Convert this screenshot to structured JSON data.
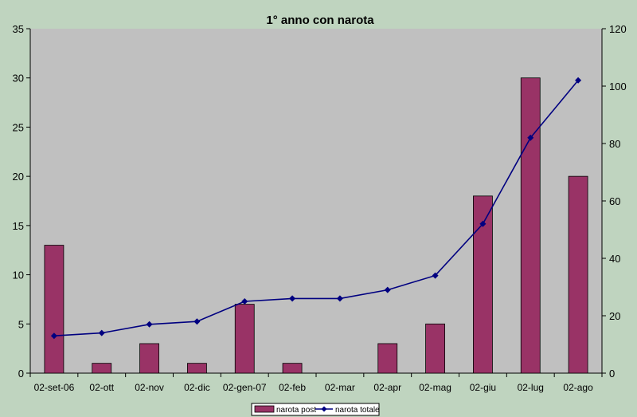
{
  "chart_data": {
    "type": "bar",
    "title": "1° anno con narota",
    "categories": [
      "02-set-06",
      "02-ott",
      "02-nov",
      "02-dic",
      "02-gen-07",
      "02-feb",
      "02-mar",
      "02-apr",
      "02-mag",
      "02-giu",
      "02-lug",
      "02-ago"
    ],
    "series": [
      {
        "name": "narota post",
        "type": "bar",
        "axis": "left",
        "color": "#993366",
        "values": [
          13,
          1,
          3,
          1,
          7,
          1,
          0,
          3,
          5,
          18,
          30,
          20
        ]
      },
      {
        "name": "narota totale",
        "type": "line",
        "axis": "right",
        "color": "#000080",
        "values": [
          13,
          14,
          17,
          18,
          25,
          26,
          26,
          29,
          34,
          52,
          82,
          102
        ]
      }
    ],
    "y_left": {
      "min": 0,
      "max": 35,
      "ticks": [
        "0",
        "5",
        "10",
        "15",
        "20",
        "25",
        "30",
        "35"
      ]
    },
    "y_right": {
      "min": 0,
      "max": 120,
      "ticks": [
        "0",
        "20",
        "40",
        "60",
        "80",
        "100",
        "120"
      ]
    },
    "grid": false,
    "legend_position": "bottom",
    "plot_background": "#c0c0c0",
    "page_background": "#bfd4bf"
  }
}
